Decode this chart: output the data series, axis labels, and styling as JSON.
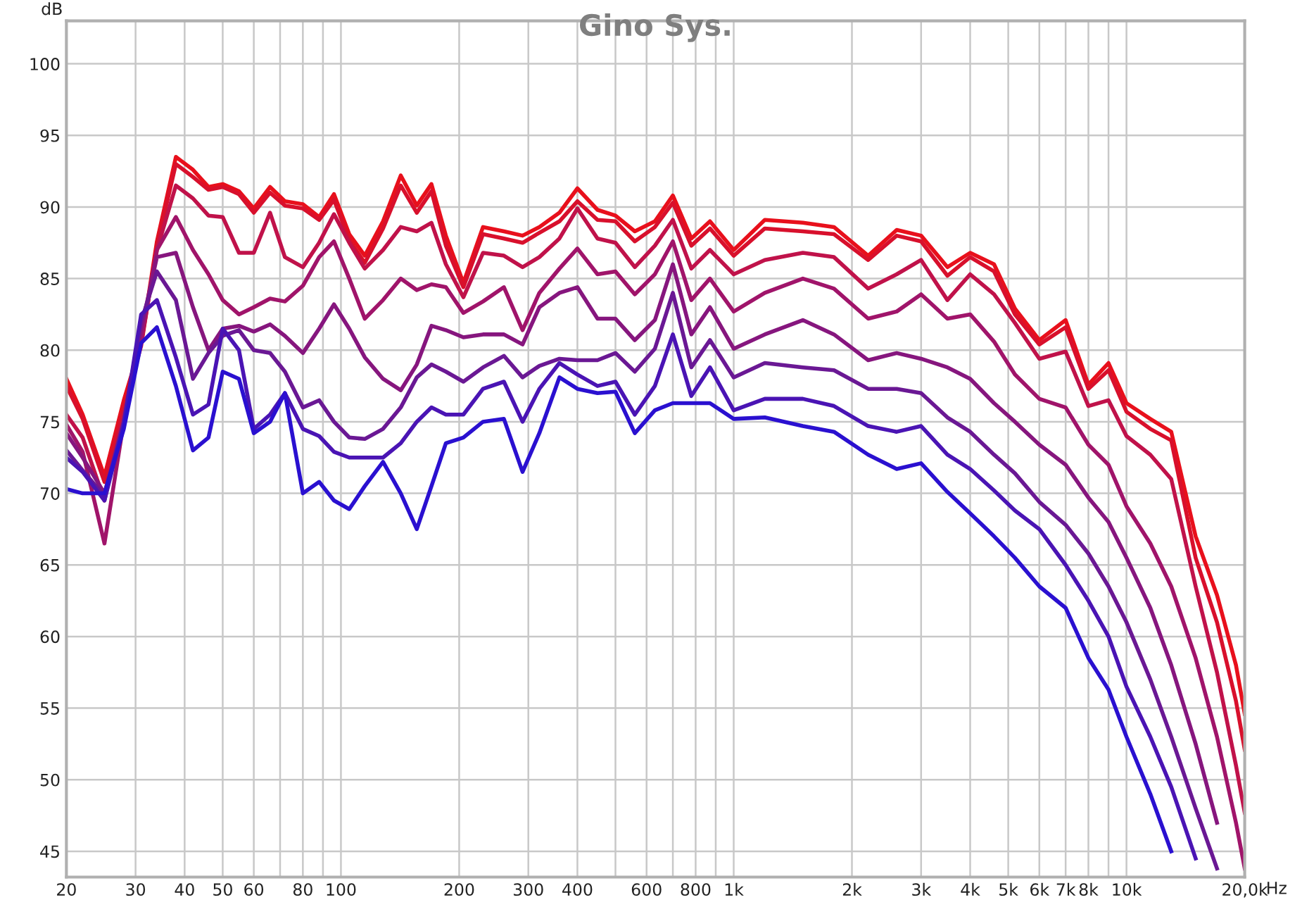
{
  "chart_data": {
    "type": "line",
    "title": "Gino Sys.",
    "xlabel": "Hz",
    "ylabel": "dB",
    "log": "x",
    "grid": true,
    "legend": false,
    "marker": "none",
    "line_style": "solid",
    "xlim": [
      20,
      20000
    ],
    "ylim": [
      43.2,
      103
    ],
    "xticks": [
      20,
      30,
      40,
      50,
      60,
      {
        "value": 70,
        "label": null
      },
      80,
      {
        "value": 90,
        "label": null
      },
      100,
      200,
      300,
      400,
      {
        "value": 500,
        "label": null
      },
      600,
      {
        "value": 700,
        "label": null
      },
      800,
      {
        "value": 900,
        "label": null
      },
      {
        "value": 1000,
        "label": "1k"
      },
      {
        "value": 2000,
        "label": "2k"
      },
      {
        "value": 3000,
        "label": "3k"
      },
      {
        "value": 4000,
        "label": "4k"
      },
      {
        "value": 5000,
        "label": "5k"
      },
      {
        "value": 6000,
        "label": "6k"
      },
      {
        "value": 7000,
        "label": "7k"
      },
      {
        "value": 8000,
        "label": "8k"
      },
      {
        "value": 9000,
        "label": null
      },
      {
        "value": 10000,
        "label": "10k"
      },
      {
        "value": 20000,
        "label": "20,0k"
      }
    ],
    "yticks": [
      45,
      50,
      55,
      60,
      65,
      70,
      75,
      80,
      85,
      90,
      95,
      100
    ],
    "x": [
      20,
      22,
      25,
      28,
      31,
      34,
      38,
      42,
      46,
      50,
      55,
      60,
      66,
      72,
      80,
      88,
      96,
      105,
      115,
      128,
      142,
      156,
      170,
      185,
      205,
      230,
      260,
      290,
      320,
      360,
      400,
      450,
      500,
      560,
      630,
      700,
      780,
      870,
      1000,
      1200,
      1500,
      1800,
      2200,
      2600,
      3000,
      3500,
      4000,
      4600,
      5200,
      6000,
      7000,
      8000,
      9000,
      10000,
      11500,
      13000,
      15000,
      17000,
      19000,
      20000
    ],
    "series": [
      {
        "color": "#e8101c",
        "values": [
          78.0,
          75.5,
          71.2,
          76.5,
          80.5,
          87.6,
          93.5,
          92.6,
          91.4,
          91.6,
          91.1,
          89.9,
          91.4,
          90.4,
          90.2,
          89.3,
          90.9,
          88.1,
          86.6,
          89.0,
          92.2,
          90.1,
          91.6,
          88.0,
          84.7,
          88.6,
          88.3,
          88.0,
          88.6,
          89.6,
          91.3,
          89.8,
          89.4,
          88.3,
          89.0,
          90.8,
          87.8,
          89.0,
          87.0,
          89.1,
          88.9,
          88.6,
          86.6,
          88.4,
          88.0,
          85.8,
          86.8,
          86.0,
          82.9,
          80.7,
          82.1,
          77.6,
          79.1,
          76.3,
          75.2,
          74.3,
          67.0,
          62.9,
          58.0,
          54.6
        ]
      },
      {
        "color": "#d8102c",
        "values": [
          77.5,
          75.2,
          70.8,
          76.0,
          80.3,
          87.3,
          93.0,
          92.1,
          91.2,
          91.4,
          90.9,
          89.6,
          91.0,
          90.1,
          89.9,
          89.1,
          90.5,
          87.7,
          86.1,
          88.5,
          91.5,
          89.6,
          91.1,
          87.3,
          84.4,
          88.1,
          87.8,
          87.5,
          88.2,
          89.0,
          90.4,
          89.1,
          89.0,
          87.6,
          88.6,
          90.3,
          87.3,
          88.5,
          86.6,
          88.5,
          88.3,
          88.1,
          86.3,
          88.0,
          87.6,
          85.2,
          86.5,
          85.5,
          82.5,
          80.4,
          81.6,
          77.3,
          78.6,
          75.7,
          74.5,
          73.7,
          65.5,
          61.0,
          55.5,
          52.1
        ]
      },
      {
        "color": "#c0124a",
        "values": [
          75.5,
          73.9,
          69.5,
          75.5,
          80.5,
          87.0,
          91.5,
          90.6,
          89.4,
          89.3,
          86.8,
          86.8,
          89.6,
          86.5,
          85.8,
          87.5,
          89.5,
          87.5,
          85.7,
          87.0,
          88.6,
          88.3,
          88.9,
          86.0,
          83.7,
          86.8,
          86.6,
          85.8,
          86.5,
          87.8,
          89.9,
          87.8,
          87.5,
          85.8,
          87.3,
          89.1,
          85.7,
          87.0,
          85.3,
          86.3,
          86.8,
          86.5,
          84.3,
          85.3,
          86.3,
          83.5,
          85.3,
          83.9,
          81.9,
          79.4,
          79.9,
          76.1,
          76.5,
          74.0,
          72.7,
          71.0,
          63.5,
          57.5,
          51.0,
          47.7
        ]
      },
      {
        "color": "#a0146a",
        "values": [
          74.8,
          72.9,
          66.5,
          75.0,
          80.8,
          87.0,
          89.3,
          87.0,
          85.3,
          83.5,
          82.5,
          83.0,
          83.6,
          83.4,
          84.5,
          86.5,
          87.6,
          85.0,
          82.2,
          83.5,
          85.0,
          84.2,
          84.6,
          84.4,
          82.6,
          83.4,
          84.4,
          81.4,
          84.0,
          85.7,
          87.1,
          85.3,
          85.5,
          83.9,
          85.3,
          87.6,
          83.5,
          85.0,
          82.7,
          84.0,
          85.0,
          84.3,
          82.2,
          82.7,
          83.9,
          82.2,
          82.5,
          80.6,
          78.3,
          76.6,
          76.0,
          73.4,
          72.0,
          69.1,
          66.5,
          63.5,
          58.5,
          53.0,
          47.0,
          43.8
        ]
      },
      {
        "color": "#86167e",
        "values": [
          74.2,
          72.5,
          70.0,
          75.0,
          81.5,
          86.5,
          86.8,
          83.0,
          80.0,
          81.5,
          81.7,
          81.3,
          81.8,
          81.0,
          79.8,
          81.5,
          83.2,
          81.5,
          79.5,
          78.0,
          77.2,
          79.0,
          81.7,
          81.4,
          80.9,
          81.1,
          81.1,
          80.4,
          83.0,
          84.0,
          84.4,
          82.2,
          82.2,
          80.7,
          82.1,
          86.0,
          81.1,
          83.0,
          80.1,
          81.1,
          82.1,
          81.1,
          79.3,
          79.8,
          79.4,
          78.8,
          78.0,
          76.3,
          75.0,
          73.4,
          72.0,
          69.7,
          68.0,
          65.5,
          62.0,
          58.0,
          52.5,
          47.0,
          null,
          null
        ]
      },
      {
        "color": "#6a1894",
        "values": [
          73.0,
          71.6,
          69.8,
          75.0,
          82.0,
          85.5,
          83.5,
          78.0,
          79.8,
          81.0,
          81.4,
          80.0,
          79.8,
          78.5,
          76.0,
          76.5,
          75.0,
          73.9,
          73.8,
          74.5,
          76.0,
          78.1,
          79.0,
          78.5,
          77.8,
          78.8,
          79.6,
          78.1,
          78.9,
          79.4,
          79.3,
          79.3,
          79.8,
          78.5,
          80.1,
          84.0,
          78.8,
          80.7,
          78.1,
          79.1,
          78.8,
          78.6,
          77.3,
          77.3,
          77.0,
          75.3,
          74.3,
          72.7,
          71.4,
          69.4,
          67.8,
          65.8,
          63.5,
          61.0,
          57.0,
          53.0,
          48.0,
          43.8,
          null,
          null
        ]
      },
      {
        "color": "#4a14b4",
        "values": [
          72.5,
          71.5,
          69.5,
          74.8,
          82.5,
          83.5,
          79.5,
          75.5,
          76.2,
          81.5,
          80.0,
          74.5,
          75.5,
          77.0,
          74.5,
          74.0,
          72.9,
          72.5,
          72.5,
          72.5,
          73.5,
          75.0,
          76.0,
          75.5,
          75.5,
          77.3,
          77.8,
          75.0,
          77.3,
          79.1,
          78.3,
          77.5,
          77.8,
          75.5,
          77.5,
          81.1,
          76.8,
          78.8,
          75.8,
          76.6,
          76.6,
          76.1,
          74.7,
          74.3,
          74.7,
          72.7,
          71.7,
          70.2,
          68.8,
          67.5,
          65.0,
          62.5,
          60.0,
          56.5,
          53.0,
          49.5,
          44.5,
          null,
          null,
          null
        ]
      },
      {
        "color": "#2a10d0",
        "values": [
          70.3,
          70.0,
          70.0,
          74.5,
          80.5,
          81.6,
          77.5,
          73.0,
          73.9,
          78.5,
          78.0,
          74.2,
          75.0,
          77.0,
          70.0,
          70.8,
          69.5,
          68.9,
          70.5,
          72.2,
          70.0,
          67.5,
          70.5,
          73.5,
          73.9,
          75.0,
          75.2,
          71.5,
          74.2,
          78.1,
          77.3,
          77.0,
          77.1,
          74.2,
          75.8,
          76.3,
          76.3,
          76.3,
          75.2,
          75.3,
          74.7,
          74.3,
          72.7,
          71.7,
          72.1,
          70.1,
          68.6,
          67.0,
          65.5,
          63.5,
          62.0,
          58.5,
          56.3,
          53.0,
          49.0,
          45.0,
          null,
          null,
          null,
          null
        ]
      }
    ]
  }
}
